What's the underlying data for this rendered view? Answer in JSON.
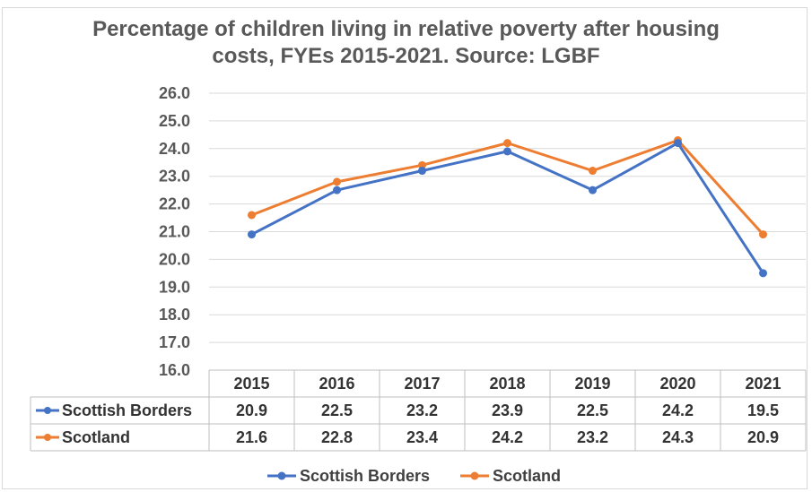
{
  "chart_data": {
    "type": "line",
    "title": "Percentage of children living in relative poverty after housing costs, FYEs 2015-2021.   Source: LGBF",
    "title_lines": [
      "Percentage of children living in relative poverty after housing",
      "costs, FYEs 2015-2021.   Source: LGBF"
    ],
    "categories": [
      "2015",
      "2016",
      "2017",
      "2018",
      "2019",
      "2020",
      "2021"
    ],
    "series": [
      {
        "name": "Scottish Borders",
        "color": "#4472c4",
        "values": [
          20.9,
          22.5,
          23.2,
          23.9,
          22.5,
          24.2,
          19.5
        ]
      },
      {
        "name": "Scotland",
        "color": "#ed7d31",
        "values": [
          21.6,
          22.8,
          23.4,
          24.2,
          23.2,
          24.3,
          20.9
        ]
      }
    ],
    "ylim": [
      16.0,
      26.0
    ],
    "ytick_step": 1.0,
    "ytick_labels": [
      "16.0",
      "17.0",
      "18.0",
      "19.0",
      "20.0",
      "21.0",
      "22.0",
      "23.0",
      "24.0",
      "25.0",
      "26.0"
    ],
    "grid": true,
    "data_table": true,
    "legend_position": "bottom"
  }
}
